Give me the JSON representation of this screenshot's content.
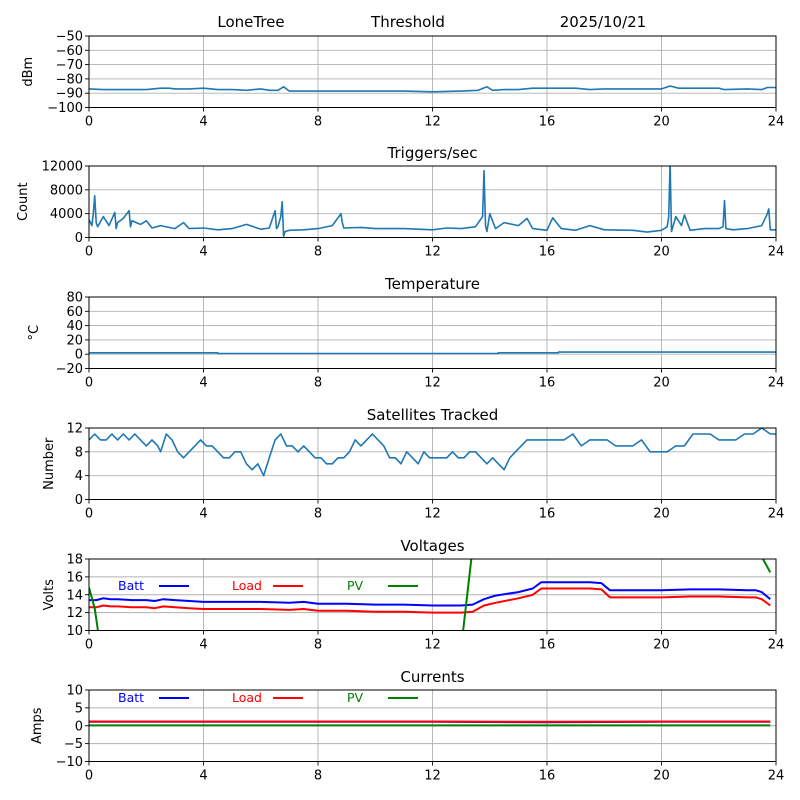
{
  "header": {
    "station": "LoneTree",
    "mode": "Threshold",
    "date": "2025/10/21"
  },
  "chart_data": [
    {
      "type": "line",
      "id": "signal",
      "title": "",
      "ylabel": "dBm",
      "xlabel": "",
      "xlim": [
        0,
        24
      ],
      "ylim": [
        -100,
        -50
      ],
      "xticks": [
        0,
        4,
        8,
        12,
        16,
        20,
        24
      ],
      "yticks": [
        -100,
        -90,
        -80,
        -70,
        -60,
        -50
      ],
      "ytick_labels": [
        "−100",
        "−90",
        "−80",
        "−70",
        "−60",
        "−50"
      ],
      "grid": true,
      "series": [
        {
          "name": "dBm",
          "color": "#1f77b4",
          "x": [
            0,
            0.5,
            1,
            1.5,
            2,
            2.5,
            2.8,
            3,
            3.5,
            4,
            4.5,
            5,
            5.5,
            6,
            6.3,
            6.6,
            6.8,
            7,
            7.5,
            8,
            9,
            10,
            11,
            12,
            13,
            13.6,
            13.9,
            14.1,
            14.5,
            15,
            15.5,
            16,
            17,
            17.5,
            18,
            19,
            20,
            20.3,
            20.6,
            21,
            22,
            22.2,
            23,
            23.5,
            23.7,
            24
          ],
          "values": [
            -87,
            -87.5,
            -87.5,
            -87.5,
            -87.5,
            -86.5,
            -86.5,
            -87,
            -87,
            -86.5,
            -87.5,
            -87.5,
            -88,
            -87,
            -88,
            -88,
            -85.5,
            -88.5,
            -88.5,
            -88.5,
            -88.5,
            -88.5,
            -88.5,
            -89,
            -88.5,
            -88,
            -85.5,
            -88,
            -87.5,
            -87.5,
            -86.5,
            -86.5,
            -86.5,
            -87.5,
            -87,
            -87,
            -87,
            -85,
            -86.5,
            -86.5,
            -86.5,
            -87.5,
            -87,
            -87.5,
            -86,
            -86
          ]
        }
      ]
    },
    {
      "type": "line",
      "id": "triggers",
      "title": "Triggers/sec",
      "ylabel": "Count",
      "xlabel": "",
      "xlim": [
        0,
        24
      ],
      "ylim": [
        0,
        12000
      ],
      "xticks": [
        0,
        4,
        8,
        12,
        16,
        20,
        24
      ],
      "yticks": [
        0,
        4000,
        8000,
        12000
      ],
      "ytick_labels": [
        "0",
        "4000",
        "8000",
        "12000"
      ],
      "grid": true,
      "series": [
        {
          "name": "Count",
          "color": "#1f77b4",
          "x": [
            0,
            0.1,
            0.15,
            0.2,
            0.25,
            0.3,
            0.5,
            0.7,
            0.9,
            0.95,
            1.0,
            1.2,
            1.4,
            1.45,
            1.5,
            1.8,
            2.0,
            2.2,
            2.5,
            3.0,
            3.3,
            3.5,
            4.0,
            4.5,
            5.0,
            5.5,
            6.0,
            6.3,
            6.5,
            6.55,
            6.6,
            6.7,
            6.75,
            6.8,
            6.85,
            7.0,
            7.5,
            8.0,
            8.5,
            8.8,
            8.85,
            8.9,
            9.5,
            10,
            11,
            12,
            12.5,
            13,
            13.5,
            13.75,
            13.8,
            13.85,
            13.9,
            14.0,
            14.2,
            14.5,
            15,
            15.3,
            15.5,
            16,
            16.2,
            16.5,
            17,
            17.5,
            18,
            19,
            19.5,
            20,
            20.2,
            20.25,
            20.3,
            20.35,
            20.5,
            20.7,
            20.8,
            21,
            21.5,
            22,
            22.15,
            22.2,
            22.25,
            22.5,
            23,
            23.5,
            23.7,
            23.75,
            23.8,
            24
          ],
          "values": [
            3000,
            2000,
            4000,
            7000,
            2500,
            1800,
            3500,
            2000,
            4200,
            1500,
            2500,
            3200,
            4500,
            1800,
            2800,
            2200,
            2800,
            1600,
            2000,
            1500,
            2500,
            1500,
            1600,
            1300,
            1500,
            2200,
            1400,
            1600,
            4500,
            1500,
            1800,
            3500,
            6000,
            200,
            1000,
            1200,
            1300,
            1500,
            2000,
            4000,
            2500,
            1600,
            1700,
            1500,
            1500,
            1300,
            1600,
            1500,
            1800,
            3500,
            11200,
            2000,
            1000,
            4000,
            1500,
            2500,
            2000,
            3200,
            1500,
            1200,
            3300,
            1500,
            1200,
            2000,
            1300,
            1200,
            900,
            1200,
            1800,
            3500,
            12500,
            1000,
            3500,
            2000,
            3800,
            1200,
            1500,
            1500,
            1800,
            6200,
            1500,
            1300,
            1500,
            2000,
            4000,
            4800,
            1300,
            1300
          ]
        }
      ]
    },
    {
      "type": "line",
      "id": "temperature",
      "title": "Temperature",
      "ylabel": "°C",
      "xlabel": "",
      "xlim": [
        0,
        24
      ],
      "ylim": [
        -20,
        80
      ],
      "xticks": [
        0,
        4,
        8,
        12,
        16,
        20,
        24
      ],
      "yticks": [
        -20,
        0,
        20,
        40,
        60,
        80
      ],
      "ytick_labels": [
        "−20",
        "0",
        "20",
        "40",
        "60",
        "80"
      ],
      "grid": true,
      "series": [
        {
          "name": "Temperature",
          "color": "#1f77b4",
          "x": [
            0,
            4.5,
            4.5,
            14.3,
            14.3,
            16.4,
            16.4,
            24
          ],
          "values": [
            2,
            2,
            1,
            1,
            2,
            2,
            3,
            3
          ]
        }
      ]
    },
    {
      "type": "line",
      "id": "satellites",
      "title": "Satellites Tracked",
      "ylabel": "Number",
      "xlabel": "",
      "xlim": [
        0,
        24
      ],
      "ylim": [
        0,
        12
      ],
      "xticks": [
        0,
        4,
        8,
        12,
        16,
        20,
        24
      ],
      "yticks": [
        0,
        4,
        8,
        12
      ],
      "ytick_labels": [
        "0",
        "4",
        "8",
        "12"
      ],
      "grid": true,
      "series": [
        {
          "name": "Satellites",
          "color": "#1f77b4",
          "x": [
            0,
            0.2,
            0.4,
            0.6,
            0.8,
            1.0,
            1.2,
            1.4,
            1.6,
            1.8,
            2.0,
            2.2,
            2.4,
            2.5,
            2.7,
            2.9,
            3.1,
            3.3,
            3.5,
            3.7,
            3.9,
            4.1,
            4.3,
            4.5,
            4.7,
            4.9,
            5.1,
            5.3,
            5.5,
            5.7,
            5.9,
            6.1,
            6.3,
            6.5,
            6.7,
            6.9,
            7.1,
            7.3,
            7.5,
            7.7,
            7.9,
            8.1,
            8.3,
            8.5,
            8.7,
            8.9,
            9.1,
            9.3,
            9.5,
            9.7,
            9.9,
            10.1,
            10.3,
            10.5,
            10.7,
            10.9,
            11.1,
            11.3,
            11.5,
            11.7,
            11.9,
            12.1,
            12.3,
            12.5,
            12.7,
            12.9,
            13.1,
            13.3,
            13.5,
            13.7,
            13.9,
            14.1,
            14.3,
            14.5,
            14.7,
            14.9,
            15.1,
            15.3,
            15.5,
            15.7,
            16.0,
            16.3,
            16.6,
            16.9,
            17.2,
            17.5,
            17.8,
            18.1,
            18.4,
            18.7,
            19.0,
            19.3,
            19.6,
            19.9,
            20.2,
            20.5,
            20.8,
            21.1,
            21.4,
            21.7,
            22.0,
            22.3,
            22.6,
            22.9,
            23.2,
            23.5,
            23.8,
            24
          ],
          "values": [
            10,
            11,
            10,
            10,
            11,
            10,
            11,
            10,
            11,
            10,
            9,
            10,
            9,
            8,
            11,
            10,
            8,
            7,
            8,
            9,
            10,
            9,
            9,
            8,
            7,
            7,
            8,
            8,
            6,
            5,
            6,
            4,
            7,
            10,
            11,
            9,
            9,
            8,
            9,
            8,
            7,
            7,
            6,
            6,
            7,
            7,
            8,
            10,
            9,
            10,
            11,
            10,
            9,
            7,
            7,
            6,
            8,
            7,
            6,
            8,
            7,
            7,
            7,
            7,
            8,
            7,
            7,
            8,
            8,
            7,
            6,
            7,
            6,
            5,
            7,
            8,
            9,
            10,
            10,
            10,
            10,
            10,
            10,
            11,
            9,
            10,
            10,
            10,
            9,
            9,
            9,
            10,
            8,
            8,
            8,
            9,
            9,
            11,
            11,
            11,
            10,
            10,
            10,
            11,
            11,
            12,
            11,
            11
          ]
        }
      ]
    },
    {
      "type": "line",
      "id": "voltages",
      "title": "Voltages",
      "ylabel": "Volts",
      "xlabel": "",
      "xlim": [
        0,
        24
      ],
      "ylim": [
        10,
        18
      ],
      "xticks": [
        0,
        4,
        8,
        12,
        16,
        20,
        24
      ],
      "yticks": [
        10,
        12,
        14,
        16,
        18
      ],
      "ytick_labels": [
        "10",
        "12",
        "14",
        "16",
        "18"
      ],
      "grid": true,
      "legend_placement": "top-inline",
      "series": [
        {
          "name": "Batt",
          "color": "#0000ff",
          "x": [
            0,
            0.25,
            0.5,
            0.75,
            1,
            1.5,
            2,
            2.3,
            2.6,
            3,
            3.5,
            4,
            5,
            6,
            7,
            7.5,
            8,
            9,
            10,
            11,
            12,
            13,
            13.4,
            13.8,
            14.2,
            15,
            15.5,
            15.8,
            16.5,
            17.5,
            17.9,
            18.2,
            19,
            20,
            21,
            22,
            23,
            23.3,
            23.5,
            23.8
          ],
          "values": [
            13.4,
            13.4,
            13.6,
            13.5,
            13.5,
            13.4,
            13.4,
            13.3,
            13.5,
            13.4,
            13.3,
            13.2,
            13.2,
            13.2,
            13.1,
            13.2,
            13.0,
            13.0,
            12.9,
            12.9,
            12.8,
            12.8,
            12.9,
            13.5,
            13.9,
            14.3,
            14.7,
            15.4,
            15.4,
            15.4,
            15.3,
            14.5,
            14.5,
            14.5,
            14.6,
            14.6,
            14.5,
            14.5,
            14.3,
            13.5
          ]
        },
        {
          "name": "Load",
          "color": "#ff0000",
          "x": [
            0,
            0.25,
            0.5,
            0.75,
            1,
            1.5,
            2,
            2.3,
            2.6,
            3,
            3.5,
            4,
            5,
            6,
            7,
            7.5,
            8,
            9,
            10,
            11,
            12,
            13,
            13.4,
            13.8,
            14.2,
            15,
            15.5,
            15.8,
            16.5,
            17.5,
            17.9,
            18.2,
            19,
            20,
            21,
            22,
            23,
            23.3,
            23.5,
            23.8
          ],
          "values": [
            12.6,
            12.6,
            12.8,
            12.7,
            12.7,
            12.6,
            12.6,
            12.5,
            12.7,
            12.6,
            12.5,
            12.4,
            12.4,
            12.4,
            12.3,
            12.4,
            12.2,
            12.2,
            12.1,
            12.1,
            12.0,
            12.0,
            12.1,
            12.8,
            13.1,
            13.6,
            14.0,
            14.7,
            14.7,
            14.7,
            14.6,
            13.7,
            13.7,
            13.7,
            13.8,
            13.8,
            13.7,
            13.7,
            13.5,
            12.8
          ]
        },
        {
          "name": "PV",
          "color": "#008000",
          "x": [
            0,
            0.2,
            0.4,
            13.0,
            13.5,
            23.2,
            23.8
          ],
          "values": [
            14.8,
            12.5,
            8.0,
            8.0,
            22.0,
            20.0,
            16.5
          ],
          "segments": [
            [
              0,
              2
            ],
            [
              3,
              4
            ],
            [
              5,
              6
            ]
          ]
        }
      ]
    },
    {
      "type": "line",
      "id": "currents",
      "title": "Currents",
      "ylabel": "Amps",
      "xlabel": "",
      "xlim": [
        0,
        24
      ],
      "ylim": [
        -10,
        10
      ],
      "xticks": [
        0,
        4,
        8,
        12,
        16,
        20,
        24
      ],
      "yticks": [
        -10,
        -5,
        0,
        5,
        10
      ],
      "ytick_labels": [
        "−10",
        "−5",
        "0",
        "5",
        "10"
      ],
      "grid": true,
      "legend_placement": "top-inline",
      "series": [
        {
          "name": "Batt",
          "color": "#0000ff",
          "x": [
            0,
            4,
            8,
            12,
            16,
            20,
            23.8
          ],
          "values": [
            1.1,
            1.1,
            1.1,
            1.1,
            1.0,
            1.1,
            1.1
          ]
        },
        {
          "name": "Load",
          "color": "#ff0000",
          "x": [
            0,
            4,
            8,
            12,
            16,
            20,
            23.8
          ],
          "values": [
            1.2,
            1.2,
            1.2,
            1.2,
            1.1,
            1.2,
            1.2
          ]
        },
        {
          "name": "PV",
          "color": "#008000",
          "x": [
            0,
            4,
            8,
            12,
            16,
            20,
            23.8
          ],
          "values": [
            0.1,
            0.1,
            0.1,
            0.1,
            0.1,
            0.1,
            0.1
          ]
        }
      ]
    }
  ]
}
